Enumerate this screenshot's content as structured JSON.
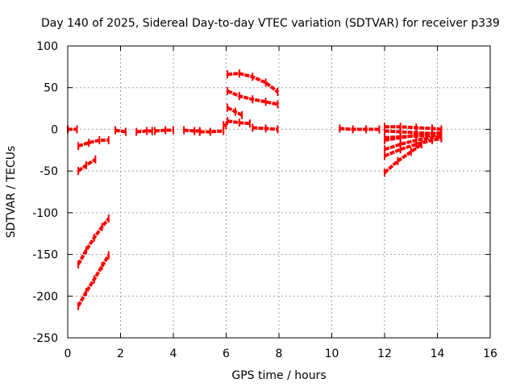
{
  "chart_data": {
    "type": "scatter",
    "title": "Day 140 of 2025, Sidereal Day-to-day VTEC variation (SDTVAR) for receiver p339",
    "xlabel": "GPS time / hours",
    "ylabel": "SDTVAR / TECUs",
    "xlim": [
      0,
      16
    ],
    "ylim": [
      -250,
      100
    ],
    "xticks": [
      0,
      2,
      4,
      6,
      8,
      10,
      12,
      14,
      16
    ],
    "yticks": [
      100,
      50,
      0,
      -50,
      -100,
      -150,
      -200,
      -250
    ],
    "grid": true,
    "color": "#ff0000",
    "series": [
      {
        "name": "arc1",
        "x": [
          0,
          0.35
        ],
        "y": [
          0,
          0
        ]
      },
      {
        "name": "arc2",
        "x": [
          0.4,
          0.8,
          1.2,
          1.55
        ],
        "y": [
          -20,
          -16,
          -13,
          -13
        ]
      },
      {
        "name": "arc3",
        "x": [
          0.4,
          0.7,
          1.05
        ],
        "y": [
          -50,
          -43,
          -36
        ]
      },
      {
        "name": "arc4",
        "x": [
          0.4,
          0.7,
          1.0,
          1.3,
          1.55
        ],
        "y": [
          -162,
          -145,
          -130,
          -117,
          -107
        ]
      },
      {
        "name": "arc5",
        "x": [
          0.4,
          0.7,
          1.0,
          1.3,
          1.55
        ],
        "y": [
          -212,
          -195,
          -180,
          -164,
          -151
        ]
      },
      {
        "name": "arc6",
        "x": [
          1.8,
          2.2
        ],
        "y": [
          -1,
          -3
        ]
      },
      {
        "name": "arc7",
        "x": [
          2.6,
          3.0,
          3.2
        ],
        "y": [
          -3,
          -2,
          -2
        ]
      },
      {
        "name": "arc8",
        "x": [
          3.3,
          3.7,
          4.0
        ],
        "y": [
          -2,
          -1,
          -1
        ]
      },
      {
        "name": "arc9",
        "x": [
          4.4,
          4.8,
          5.0
        ],
        "y": [
          -1,
          -2,
          -2
        ]
      },
      {
        "name": "arc10",
        "x": [
          5.0,
          5.4,
          5.9
        ],
        "y": [
          -3,
          -3,
          -2
        ]
      },
      {
        "name": "arc11",
        "x": [
          5.9,
          6.0
        ],
        "y": [
          5,
          5
        ]
      },
      {
        "name": "arc12",
        "x": [
          6.05,
          6.5,
          7.0,
          7.5,
          7.95
        ],
        "y": [
          66,
          67,
          63,
          56,
          45
        ]
      },
      {
        "name": "arc13",
        "x": [
          6.05,
          6.5,
          7.0,
          7.5,
          7.95
        ],
        "y": [
          46,
          40,
          36,
          33,
          30
        ]
      },
      {
        "name": "arc14",
        "x": [
          6.05,
          6.35,
          6.6
        ],
        "y": [
          26,
          21,
          17
        ]
      },
      {
        "name": "arc15",
        "x": [
          6.05,
          6.5,
          6.9
        ],
        "y": [
          10,
          8,
          7
        ]
      },
      {
        "name": "arc16",
        "x": [
          7.0,
          7.5,
          7.95
        ],
        "y": [
          2,
          1,
          0
        ]
      },
      {
        "name": "arc17",
        "x": [
          10.3,
          10.8,
          11.3,
          11.8
        ],
        "y": [
          1,
          0,
          0,
          0
        ]
      },
      {
        "name": "arc18",
        "x": [
          12.0,
          12.6,
          13.2,
          13.8,
          14.15
        ],
        "y": [
          3,
          3,
          2,
          1,
          0
        ]
      },
      {
        "name": "arc19",
        "x": [
          12.0,
          12.6,
          13.2,
          13.8,
          14.15
        ],
        "y": [
          -2,
          -3,
          -4,
          -5,
          -5
        ]
      },
      {
        "name": "arc20",
        "x": [
          12.0,
          12.6,
          13.2,
          13.8,
          14.15
        ],
        "y": [
          -13,
          -10,
          -7,
          -5,
          -4
        ]
      },
      {
        "name": "arc21",
        "x": [
          12.0,
          12.6,
          13.2,
          13.8,
          14.15
        ],
        "y": [
          -24,
          -18,
          -13,
          -10,
          -9
        ]
      },
      {
        "name": "arc22",
        "x": [
          12.0,
          12.6,
          13.2,
          13.8,
          14.15
        ],
        "y": [
          -32,
          -24,
          -18,
          -13,
          -11
        ]
      },
      {
        "name": "arc23",
        "x": [
          12.0,
          12.5,
          13.0,
          13.4
        ],
        "y": [
          -52,
          -38,
          -27,
          -18
        ]
      },
      {
        "name": "arc24",
        "x": [
          12.0,
          12.6,
          13.2,
          14.15
        ],
        "y": [
          -10,
          -9,
          -8,
          -7
        ]
      }
    ]
  }
}
